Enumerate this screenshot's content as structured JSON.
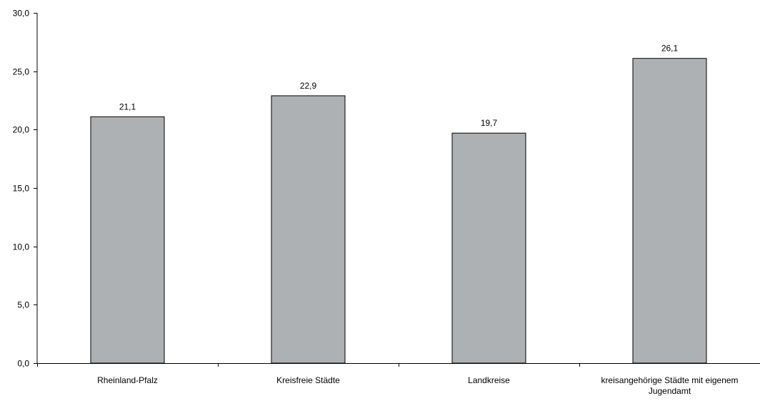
{
  "chart_data": {
    "type": "bar",
    "categories": [
      [
        "Rheinland-Pfalz"
      ],
      [
        "Kreisfreie Städte"
      ],
      [
        "Landkreise"
      ],
      [
        "kreisangehörige Städte mit eigenem",
        "Jugendamt"
      ]
    ],
    "values": [
      21.1,
      22.9,
      19.7,
      26.1
    ],
    "value_labels": [
      "21,1",
      "22,9",
      "19,7",
      "26,1"
    ],
    "yticks": [
      0,
      5,
      10,
      15,
      20,
      25,
      30
    ],
    "ytick_labels": [
      "0,0",
      "5,0",
      "10,0",
      "15,0",
      "20,0",
      "25,0",
      "30,0"
    ],
    "ylim": [
      0,
      30
    ],
    "grid": false,
    "legend": "none",
    "bar_color": "#aeb1b4",
    "bar_border": "#000000"
  }
}
